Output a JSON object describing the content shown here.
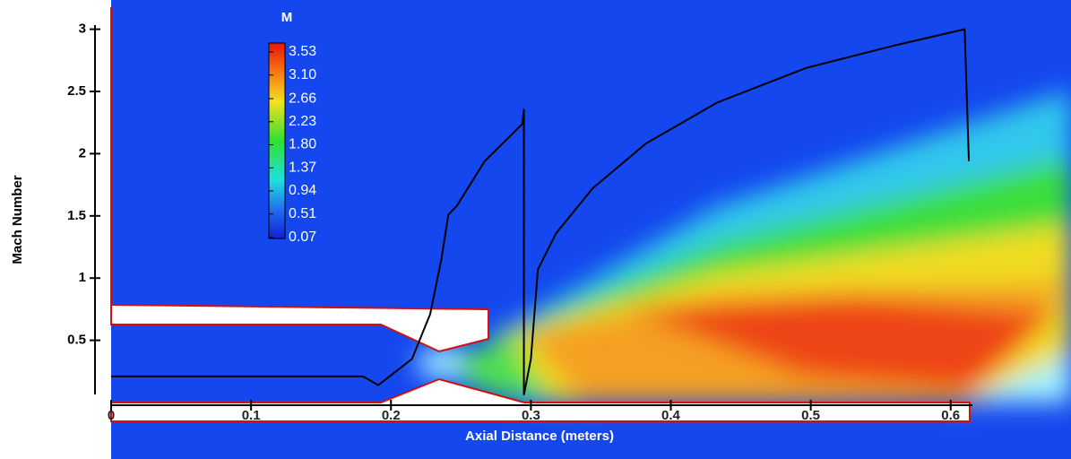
{
  "chart_data": {
    "type": "line",
    "x_label": "Axial Distance (meters)",
    "y_label": "Mach Number",
    "x": [
      0,
      0.18,
      0.191,
      0.215,
      0.228,
      0.236,
      0.241,
      0.247,
      0.267,
      0.294,
      0.295,
      0.295,
      0.3,
      0.305,
      0.318,
      0.344,
      0.382,
      0.433,
      0.497,
      0.56,
      0.61,
      0.613
    ],
    "values": [
      0.21,
      0.21,
      0.14,
      0.35,
      0.71,
      1.15,
      1.51,
      1.58,
      1.94,
      2.24,
      2.36,
      0.06,
      0.35,
      1.07,
      1.36,
      1.72,
      2.08,
      2.41,
      2.69,
      2.87,
      3.0,
      1.94
    ],
    "color": "#000000",
    "xlim": [
      0,
      0.686
    ],
    "ylim": [
      0,
      3.235
    ],
    "xticks": [
      0,
      0.1,
      0.2,
      0.3,
      0.4,
      0.5,
      0.6
    ],
    "yticks": [
      0.5,
      1,
      1.5,
      2,
      2.5,
      3
    ],
    "colorbar": {
      "title": "M",
      "clim": [
        0.07,
        3.53
      ],
      "ticks": [
        3.53,
        {
          "value": 3.1,
          "label": "3.10"
        },
        2.66,
        2.23,
        {
          "value": 1.8,
          "label": "1.80"
        },
        1.37,
        0.94,
        0.51,
        0.07
      ]
    }
  }
}
